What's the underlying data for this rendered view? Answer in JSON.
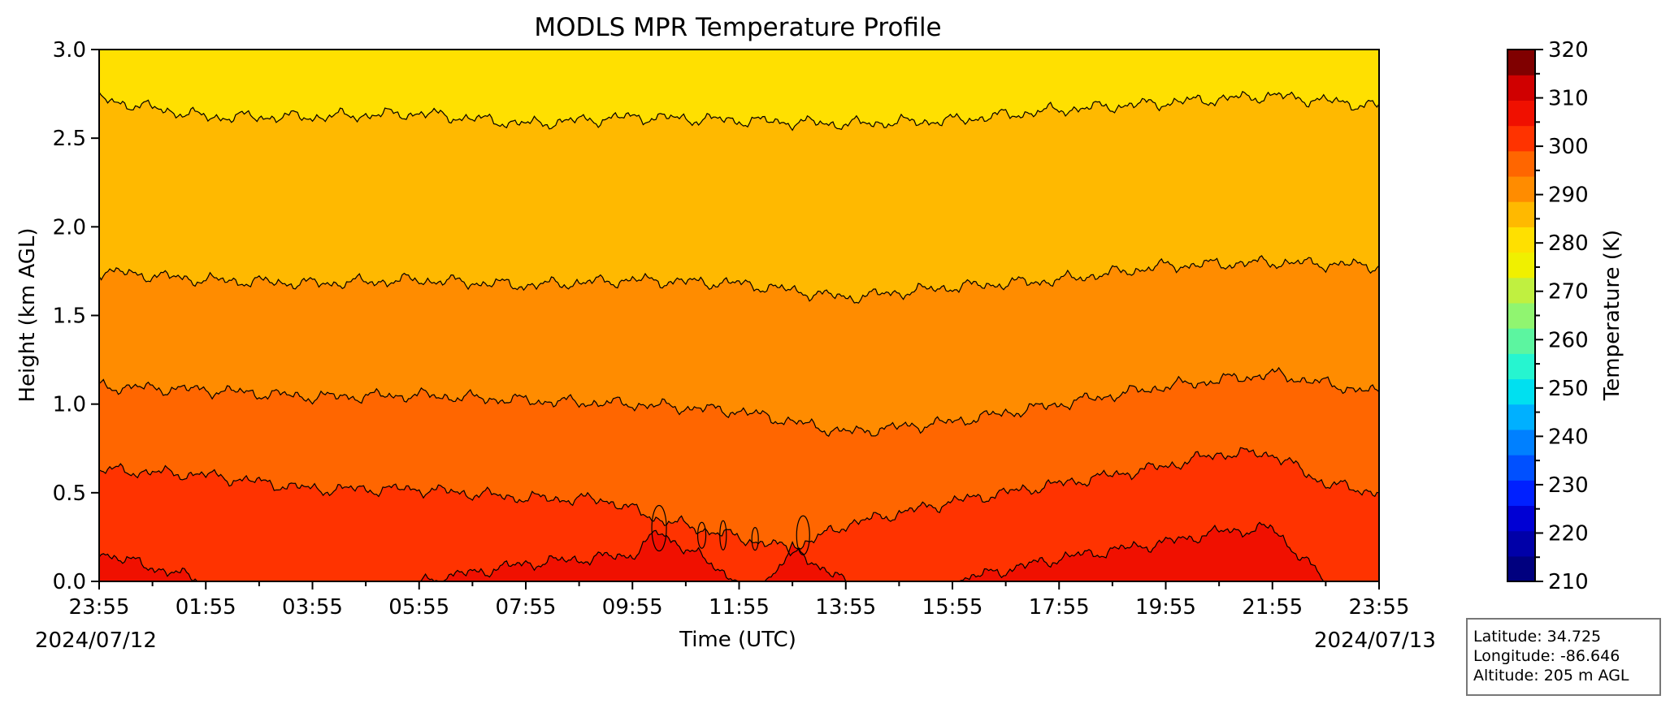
{
  "chart_data": {
    "type": "heatmap",
    "title": "MODLS MPR Temperature Profile",
    "xlabel": "Time (UTC)",
    "ylabel": "Height (km AGL)",
    "x_tick_labels": [
      "23:55",
      "01:55",
      "03:55",
      "05:55",
      "07:55",
      "09:55",
      "11:55",
      "13:55",
      "15:55",
      "17:55",
      "19:55",
      "21:55",
      "23:55"
    ],
    "x_date_labels": {
      "start": "2024/07/12",
      "end": "2024/07/13"
    },
    "x_range": [
      "2024/07/12 23:55",
      "2024/07/13 23:55"
    ],
    "x_minor_tick_hours": 1,
    "y_tick_labels": [
      "0.0",
      "0.5",
      "1.0",
      "1.5",
      "2.0",
      "2.5",
      "3.0"
    ],
    "ylim": [
      0.0,
      3.0
    ],
    "colorbar": {
      "label": "Temperature (K)",
      "range": [
        210,
        320
      ],
      "step": 5,
      "tick_labels": [
        "210",
        "220",
        "230",
        "240",
        "250",
        "260",
        "270",
        "280",
        "290",
        "300",
        "310",
        "320"
      ],
      "colors": [
        "#00007f",
        "#0000a8",
        "#0000d4",
        "#0020ff",
        "#0050ff",
        "#0080ff",
        "#00b0ff",
        "#00e0f0",
        "#26f5d0",
        "#5cf5a0",
        "#90f570",
        "#c0f040",
        "#f0f000",
        "#ffe000",
        "#ffb900",
        "#ff8c00",
        "#ff6600",
        "#ff3300",
        "#f01000",
        "#d00000",
        "#800000"
      ]
    },
    "contour_bands": [
      {
        "temperature_range_K": [
          310,
          315
        ],
        "color": "#f01000"
      },
      {
        "temperature_range_K": [
          305,
          310
        ],
        "color": "#ff3300"
      },
      {
        "temperature_range_K": [
          300,
          305
        ],
        "color": "#ff6600"
      },
      {
        "temperature_range_K": [
          295,
          300
        ],
        "color": "#ff8c00"
      },
      {
        "temperature_range_K": [
          290,
          295
        ],
        "color": "#ffb900"
      },
      {
        "temperature_range_K": [
          285,
          290
        ],
        "color": "#ffe000"
      }
    ],
    "contour_levels": [
      {
        "level_K": 290,
        "times_h": [
          0,
          2,
          4,
          6,
          8,
          10,
          12,
          14,
          16,
          18,
          20,
          22,
          24
        ],
        "height_km": [
          2.72,
          2.62,
          2.62,
          2.64,
          2.58,
          2.62,
          2.6,
          2.58,
          2.6,
          2.66,
          2.7,
          2.74,
          2.68
        ]
      },
      {
        "level_K": 295,
        "times_h": [
          0,
          2,
          4,
          6,
          8,
          10,
          12,
          14,
          16,
          18,
          20,
          22,
          24
        ],
        "height_km": [
          1.75,
          1.7,
          1.68,
          1.7,
          1.67,
          1.7,
          1.68,
          1.6,
          1.66,
          1.7,
          1.78,
          1.8,
          1.78
        ]
      },
      {
        "level_K": 300,
        "times_h": [
          0,
          2,
          4,
          6,
          8,
          10,
          12,
          14,
          16,
          18,
          20,
          22,
          24
        ],
        "height_km": [
          1.1,
          1.08,
          1.04,
          1.05,
          1.02,
          1.0,
          0.96,
          0.84,
          0.9,
          1.0,
          1.1,
          1.17,
          1.06
        ]
      },
      {
        "level_K": 305,
        "times_h": [
          0,
          2,
          4,
          6,
          8,
          9.5,
          10.5,
          11.5,
          13,
          14,
          16,
          18,
          20,
          21,
          22,
          23,
          24
        ],
        "height_km": [
          0.63,
          0.6,
          0.52,
          0.52,
          0.47,
          0.46,
          0.35,
          0.28,
          0.18,
          0.32,
          0.45,
          0.55,
          0.65,
          0.72,
          0.72,
          0.55,
          0.5
        ]
      },
      {
        "level_K": 310,
        "times_h": [
          0,
          0.5,
          1,
          2,
          4,
          6,
          8,
          10,
          10.5,
          12,
          12.5,
          13,
          14,
          16,
          18,
          20,
          21,
          22,
          23,
          24
        ],
        "height_km": [
          0.17,
          0.12,
          0.08,
          0.0,
          0.0,
          0.0,
          0.1,
          0.15,
          0.28,
          0.0,
          0.0,
          0.18,
          0.0,
          0.0,
          0.13,
          0.22,
          0.28,
          0.3,
          0.0,
          0.0
        ]
      }
    ],
    "annotations": {
      "latitude": "Latitude: 34.725",
      "longitude": "Longitude: -86.646",
      "altitude": "Altitude: 205 m AGL"
    }
  }
}
